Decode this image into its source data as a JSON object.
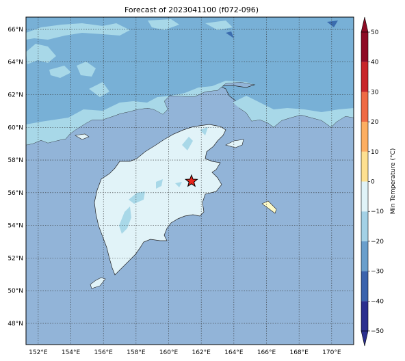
{
  "title": "Forecast of 2023041100 (f072-096)",
  "map": {
    "lon_range": [
      151.25,
      171.35
    ],
    "lat_range": [
      46.7,
      66.75
    ],
    "lon_ticks": [
      {
        "value": 152,
        "label": "152°E"
      },
      {
        "value": 154,
        "label": "154°E"
      },
      {
        "value": 156,
        "label": "156°E"
      },
      {
        "value": 158,
        "label": "158°E"
      },
      {
        "value": 160,
        "label": "160°E"
      },
      {
        "value": 162,
        "label": "162°E"
      },
      {
        "value": 164,
        "label": "164°E"
      },
      {
        "value": 166,
        "label": "166°E"
      },
      {
        "value": 168,
        "label": "168°E"
      },
      {
        "value": 170,
        "label": "170°E"
      }
    ],
    "lat_ticks": [
      {
        "value": 66,
        "label": "66°N"
      },
      {
        "value": 64,
        "label": "64°N"
      },
      {
        "value": 62,
        "label": "62°N"
      },
      {
        "value": 60,
        "label": "60°N"
      },
      {
        "value": 58,
        "label": "58°N"
      },
      {
        "value": 56,
        "label": "56°N"
      },
      {
        "value": 54,
        "label": "54°N"
      },
      {
        "value": 52,
        "label": "52°N"
      },
      {
        "value": 50,
        "label": "50°N"
      },
      {
        "value": 48,
        "label": "48°N"
      }
    ],
    "gridlines": true,
    "marker": {
      "lon": 161.4,
      "lat": 56.7,
      "symbol": "star",
      "color": "#e8251c"
    }
  },
  "colorbar": {
    "label": "Min Temperature (°C)",
    "min": -50,
    "max": 50,
    "step": 10,
    "extend": "both",
    "tick_labels": [
      "50",
      "40",
      "30",
      "20",
      "10",
      "0",
      "−10",
      "−20",
      "−30",
      "−40",
      "−50"
    ],
    "colors": [
      "#2b2f8f",
      "#3b63ad",
      "#6a9fcc",
      "#a3d1e6",
      "#e0f3f8",
      "#fdfdd0",
      "#fee090",
      "#fdae61",
      "#ef6a44",
      "#c8262a",
      "#8e0b25"
    ]
  },
  "colors": {
    "sea": "#92b4d8",
    "land_cold": "#78b0d6",
    "land_mid": "#a8d8e8",
    "land_mild": "#e1f3f8",
    "land_warm": "#fbf9c8",
    "coast": "#222222"
  }
}
